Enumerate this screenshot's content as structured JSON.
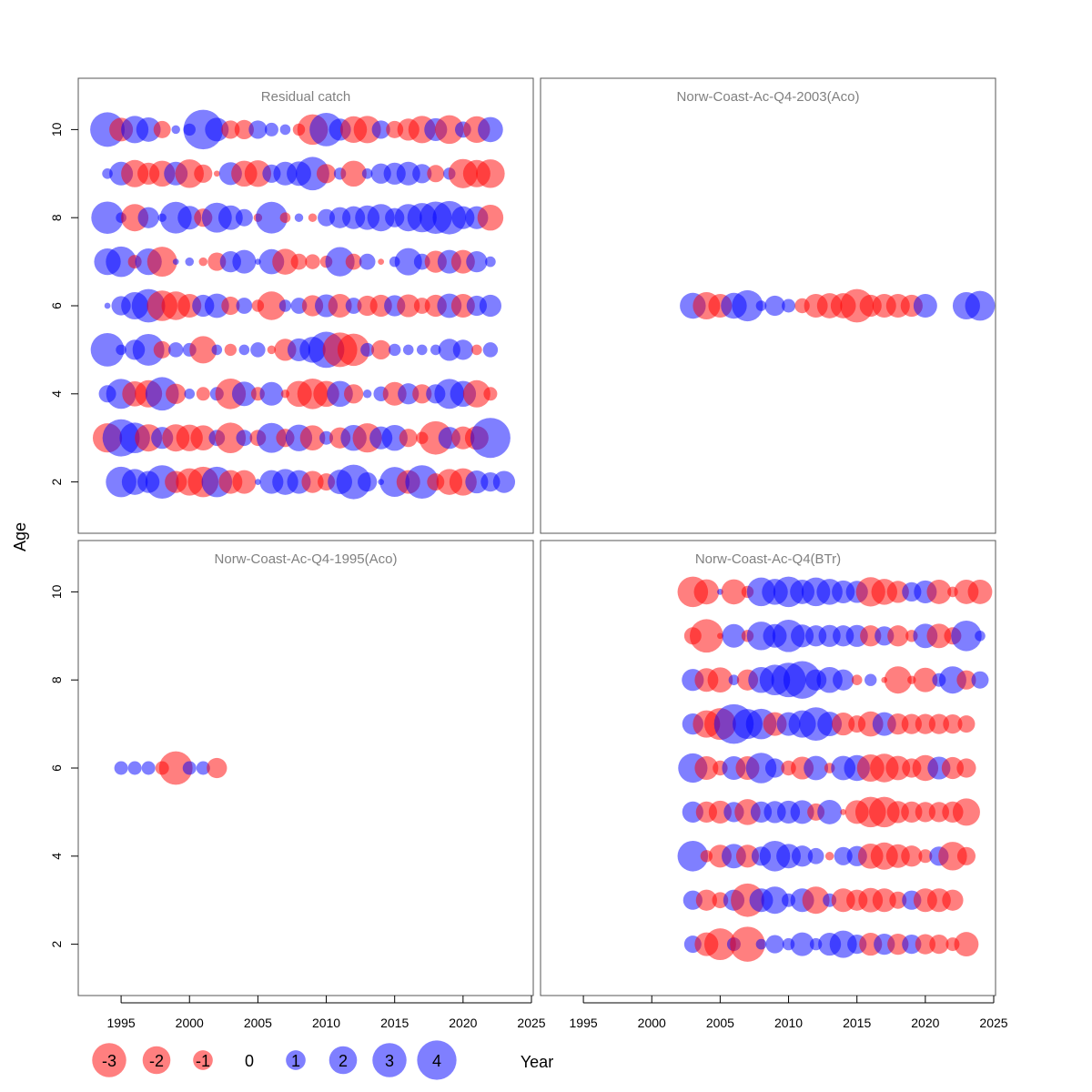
{
  "colors": {
    "negative": "#ff0000",
    "positive": "#0000ff",
    "bubble_opacity": 0.5,
    "panel_title": "#808080",
    "frame": "#555555"
  },
  "axis": {
    "ylabel": "Age",
    "xlabel": "Year"
  },
  "legend": {
    "items": [
      {
        "value": -3,
        "label": "-3"
      },
      {
        "value": -2,
        "label": "-2"
      },
      {
        "value": -1,
        "label": "-1"
      },
      {
        "value": 0,
        "label": "0"
      },
      {
        "value": 1,
        "label": "1"
      },
      {
        "value": 2,
        "label": "2"
      },
      {
        "value": 3,
        "label": "3"
      },
      {
        "value": 4,
        "label": "4"
      }
    ]
  },
  "chart_data": [
    {
      "type": "scatter",
      "title": "Residual catch",
      "position": "top-left",
      "xlim": [
        1992,
        2025
      ],
      "ylim": [
        1,
        11
      ],
      "yticks": [
        "2",
        "4",
        "6",
        "8",
        "10"
      ],
      "xticks": [],
      "rows": [
        {
          "age": 10,
          "start": 1994,
          "residuals": [
            3.2,
            -1.5,
            2.0,
            1.6,
            -0.8,
            0.2,
            0.4,
            4.2,
            1.5,
            -0.9,
            -1.0,
            0.9,
            0.5,
            0.3,
            -0.4,
            -2.5,
            3.0,
            1.3,
            -1.9,
            -2.0,
            0.9,
            -0.8,
            -1.3,
            -2.0,
            1.4,
            -2.2,
            0.7,
            -1.9,
            1.7
          ]
        },
        {
          "age": 9,
          "start": 1994,
          "residuals": [
            0.3,
            1.5,
            -2.0,
            -1.3,
            -1.8,
            1.5,
            -2.2,
            -0.9,
            -0.1,
            1.4,
            -1.8,
            -1.9,
            0.9,
            1.5,
            1.6,
            3.0,
            -1.0,
            0.4,
            -1.8,
            0.3,
            1.1,
            1.3,
            1.5,
            1.0,
            -0.8,
            0.4,
            -2.3,
            -2.0,
            -2.2
          ]
        },
        {
          "age": 8,
          "start": 1994,
          "residuals": [
            2.8,
            0.3,
            -2.0,
            1.2,
            0.2,
            2.7,
            1.5,
            -0.9,
            2.4,
            1.6,
            0.8,
            -0.2,
            2.7,
            -0.3,
            0.2,
            -0.2,
            0.8,
            1.2,
            1.4,
            1.6,
            2.0,
            1.0,
            2.0,
            2.3,
            2.8,
            3.0,
            1.4,
            1.4,
            -1.8
          ]
        },
        {
          "age": 7,
          "start": 1994,
          "residuals": [
            1.9,
            2.5,
            -0.5,
            1.9,
            -2.4,
            0.1,
            0.2,
            -0.2,
            -0.9,
            1.2,
            1.5,
            0.1,
            1.7,
            -1.8,
            -0.7,
            -0.6,
            -0.4,
            2.3,
            -0.7,
            0.7,
            -0.1,
            0.3,
            2.0,
            0.7,
            -1.3,
            1.5,
            -1.5,
            1.2,
            0.3
          ]
        },
        {
          "age": 6,
          "start": 1994,
          "residuals": [
            0.1,
            1.0,
            2.0,
            3.0,
            -2.5,
            -2.2,
            -1.5,
            1.3,
            1.6,
            -0.9,
            0.7,
            -0.4,
            -2.2,
            0.4,
            0.7,
            -1.2,
            1.4,
            -1.5,
            0.7,
            -1.1,
            -1.3,
            1.2,
            -1.4,
            -0.7,
            -1.3,
            1.6,
            -1.5,
            1.1,
            1.3
          ]
        },
        {
          "age": 5,
          "start": 1994,
          "residuals": [
            3.0,
            0.3,
            1.1,
            2.7,
            -0.8,
            0.6,
            0.5,
            -2.0,
            0.3,
            -0.4,
            0.3,
            0.6,
            -0.2,
            -1.3,
            1.4,
            1.8,
            3.5,
            -3.2,
            -2.8,
            0.5,
            -1.0,
            0.4,
            0.3,
            0.3,
            0.3,
            1.3,
            1.1,
            -0.3,
            0.6
          ]
        },
        {
          "age": 4,
          "start": 1994,
          "residuals": [
            0.8,
            2.4,
            -1.7,
            -2.0,
            3.0,
            -1.1,
            0.3,
            -0.5,
            0.5,
            -2.5,
            1.6,
            -0.5,
            1.5,
            -0.2,
            -1.8,
            -2.5,
            -1.8,
            1.8,
            -1.0,
            0.2,
            0.6,
            -1.5,
            1.2,
            -1.0,
            1.0,
            2.4,
            1.8,
            -2.0,
            -0.5
          ]
        },
        {
          "age": 3,
          "start": 1994,
          "residuals": [
            -2.3,
            3.7,
            2.5,
            -2.0,
            1.3,
            -2.0,
            -1.9,
            -1.7,
            0.7,
            -2.5,
            0.7,
            -0.7,
            2.4,
            -0.9,
            1.9,
            -1.7,
            0.5,
            -1.2,
            1.8,
            -2.3,
            1.4,
            1.8,
            -0.9,
            -0.4,
            -3.0,
            1.3,
            -1.4,
            -1.5,
            4.3
          ]
        },
        {
          "age": 2,
          "start": 1995,
          "residuals": [
            2.5,
            1.8,
            1.3,
            3.0,
            -1.3,
            -2.0,
            -2.5,
            2.5,
            -1.5,
            -1.5,
            0.1,
            1.5,
            1.8,
            1.5,
            -1.3,
            -0.8,
            1.6,
            3.2,
            1.0,
            0.1,
            2.4,
            -1.5,
            3.0,
            -0.8,
            -1.8,
            -2.0,
            1.4,
            1.0,
            1.3
          ]
        }
      ]
    },
    {
      "type": "scatter",
      "title": "Norw-Coast-Ac-Q4-2003(Aco)",
      "position": "top-right",
      "xlim": [
        1992,
        2025
      ],
      "ylim": [
        1,
        11
      ],
      "yticks": [],
      "xticks": [],
      "rows": [
        {
          "age": 6,
          "start": 2003,
          "residuals": [
            1.8,
            -2.0,
            -1.5,
            1.8,
            2.6,
            0.3,
            1.1,
            0.5,
            -0.6,
            -1.5,
            -1.7,
            -1.7,
            -3.0,
            -1.3,
            -1.5,
            -1.5,
            -1.3,
            1.5,
            null,
            null,
            2.0,
            2.4
          ]
        }
      ]
    },
    {
      "type": "scatter",
      "title": "Norw-Coast-Ac-Q4-1995(Aco)",
      "position": "bottom-left",
      "xlim": [
        1992,
        2025
      ],
      "ylim": [
        1,
        11
      ],
      "yticks": [
        "2",
        "4",
        "6",
        "8",
        "10"
      ],
      "xticks": [
        "1995",
        "2000",
        "2005",
        "2010",
        "2015",
        "2020",
        "2025"
      ],
      "rows": [
        {
          "age": 6,
          "start": 1995,
          "residuals": [
            0.5,
            0.5,
            0.5,
            -0.5,
            -3.0,
            0.5,
            0.5,
            -1.1
          ]
        }
      ]
    },
    {
      "type": "scatter",
      "title": "Norw-Coast-Ac-Q4(BTr)",
      "position": "bottom-right",
      "xlim": [
        1992,
        2025
      ],
      "ylim": [
        1,
        11
      ],
      "yticks": [],
      "xticks": [
        "1995",
        "2000",
        "2005",
        "2010",
        "2015",
        "2020",
        "2025"
      ],
      "rows": [
        {
          "age": 10,
          "start": 2003,
          "residuals": [
            -2.5,
            -1.7,
            0.1,
            -1.7,
            -0.4,
            2.2,
            1.8,
            2.5,
            1.6,
            2.2,
            1.8,
            1.4,
            1.3,
            -2.3,
            -1.8,
            -1.3,
            1.0,
            1.4,
            -1.6,
            -0.3,
            -1.6,
            -1.6
          ]
        },
        {
          "age": 9,
          "start": 2003,
          "residuals": [
            -0.8,
            -3.0,
            -0.1,
            1.5,
            -0.4,
            2.2,
            1.5,
            2.8,
            1.4,
            1.2,
            1.3,
            1.2,
            1.3,
            -1.2,
            1.0,
            -1.2,
            -0.4,
            1.6,
            -1.6,
            -0.8,
            2.5,
            0.3
          ]
        },
        {
          "age": 8,
          "start": 2003,
          "residuals": [
            1.3,
            -1.5,
            -1.7,
            0.3,
            -1.2,
            1.8,
            2.5,
            3.2,
            3.8,
            1.2,
            1.8,
            1.2,
            -0.3,
            0.4,
            -0.1,
            -2.0,
            -0.2,
            -1.6,
            0.5,
            2.0,
            -1.0,
            0.8
          ]
        },
        {
          "age": 7,
          "start": 2003,
          "residuals": [
            1.2,
            -2.0,
            -2.7,
            4.2,
            2.4,
            2.5,
            -1.5,
            1.5,
            2.0,
            3.0,
            1.6,
            -1.4,
            -0.8,
            -1.7,
            1.5,
            -1.2,
            -1.1,
            -1.1,
            -1.1,
            -1.0,
            -0.8
          ]
        },
        {
          "age": 6,
          "start": 2003,
          "residuals": [
            2.3,
            -1.5,
            -0.6,
            1.5,
            -1.5,
            2.5,
            1.0,
            -0.6,
            -1.4,
            1.6,
            -0.3,
            1.6,
            1.8,
            -2.0,
            -2.2,
            -1.6,
            -1.0,
            -1.8,
            1.4,
            -1.3,
            -1.0
          ]
        },
        {
          "age": 5,
          "start": 2003,
          "residuals": [
            1.2,
            -1.2,
            -1.4,
            1.1,
            -1.8,
            1.2,
            1.3,
            1.4,
            1.5,
            -0.8,
            1.6,
            -0.1,
            -1.5,
            -2.5,
            -2.5,
            -1.3,
            -1.2,
            -1.1,
            -1.1,
            -1.2,
            -2.0
          ]
        },
        {
          "age": 4,
          "start": 2003,
          "residuals": [
            2.5,
            -0.4,
            -1.4,
            1.6,
            -1.4,
            1.0,
            2.5,
            1.6,
            1.2,
            0.7,
            -0.2,
            0.9,
            1.1,
            -1.7,
            -2.0,
            -1.5,
            -1.2,
            -0.5,
            1.0,
            -2.2,
            -0.9
          ]
        },
        {
          "age": 3,
          "start": 2003,
          "residuals": [
            1.0,
            -1.2,
            -0.7,
            1.2,
            -3.0,
            1.5,
            2.0,
            0.5,
            1.5,
            -2.0,
            0.5,
            -1.5,
            -1.2,
            -1.6,
            -1.5,
            -0.8,
            1.0,
            -1.5,
            -1.5,
            -1.2
          ]
        },
        {
          "age": 2,
          "start": 2003,
          "residuals": [
            0.8,
            -1.5,
            -2.7,
            0.5,
            -3.3,
            0.3,
            0.9,
            0.4,
            1.5,
            0.4,
            1.4,
            2.0,
            1.0,
            -1.4,
            1.2,
            -1.2,
            1.0,
            -1.1,
            -1.0,
            -0.5,
            -1.6
          ]
        }
      ]
    }
  ]
}
